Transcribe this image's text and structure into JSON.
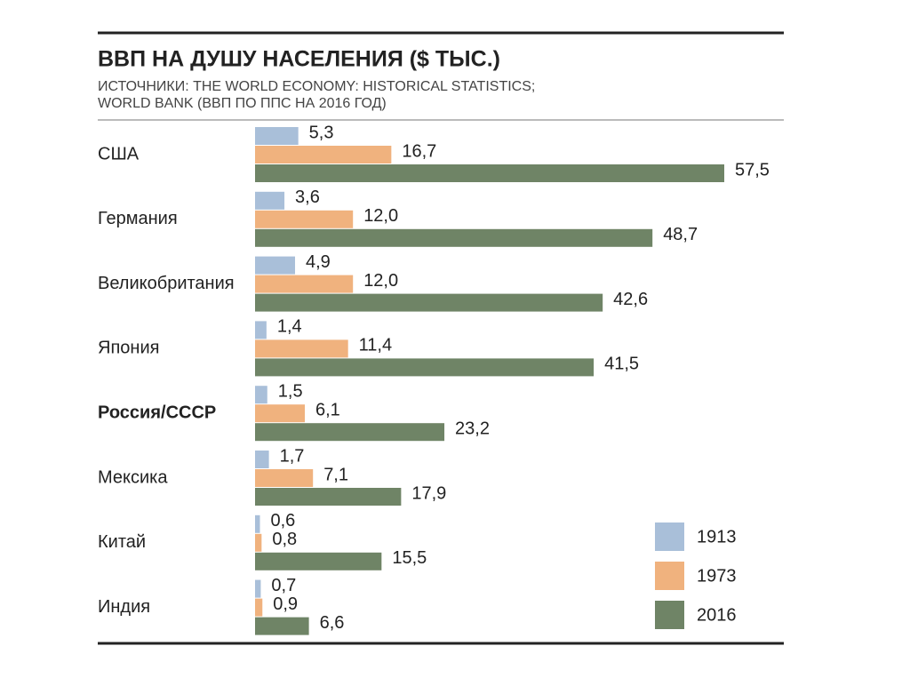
{
  "chart_data": {
    "type": "hbar",
    "title": "ВВП НА ДУШУ НАСЕЛЕНИЯ ($ ТЫС.)",
    "subtitle": [
      "ИСТОЧНИКИ: THE WORLD ECONOMY: HISTORICAL STATISTICS;",
      "WORLD BANK (ВВП ПО ППС НА 2016 ГОД)"
    ],
    "categories": [
      "США",
      "Германия",
      "Великобритания",
      "Япония",
      "Россия/СССР",
      "Мексика",
      "Китай",
      "Индия"
    ],
    "bold_categories": [
      4
    ],
    "series": [
      {
        "name": "1913",
        "color": "#a9bfd9",
        "values": [
          5.3,
          3.6,
          4.9,
          1.4,
          1.5,
          1.7,
          0.6,
          0.7
        ],
        "value_labels": [
          "5,3",
          "3,6",
          "4,9",
          "1,4",
          "1,5",
          "1,7",
          "0,6",
          "0,7"
        ]
      },
      {
        "name": "1973",
        "color": "#f0b27e",
        "values": [
          16.7,
          12.0,
          12.0,
          11.4,
          6.1,
          7.1,
          0.8,
          0.9
        ],
        "value_labels": [
          "16,7",
          "12,0",
          "12,0",
          "11,4",
          "6,1",
          "7,1",
          "0,8",
          "0,9"
        ]
      },
      {
        "name": "2016",
        "color": "#6f8466",
        "values": [
          57.5,
          48.7,
          42.6,
          41.5,
          23.2,
          17.9,
          15.5,
          6.6
        ],
        "value_labels": [
          "57,5",
          "48,7",
          "42,6",
          "41,5",
          "23,2",
          "17,9",
          "15,5",
          "6,6"
        ]
      }
    ],
    "legend": "bottom-right"
  }
}
